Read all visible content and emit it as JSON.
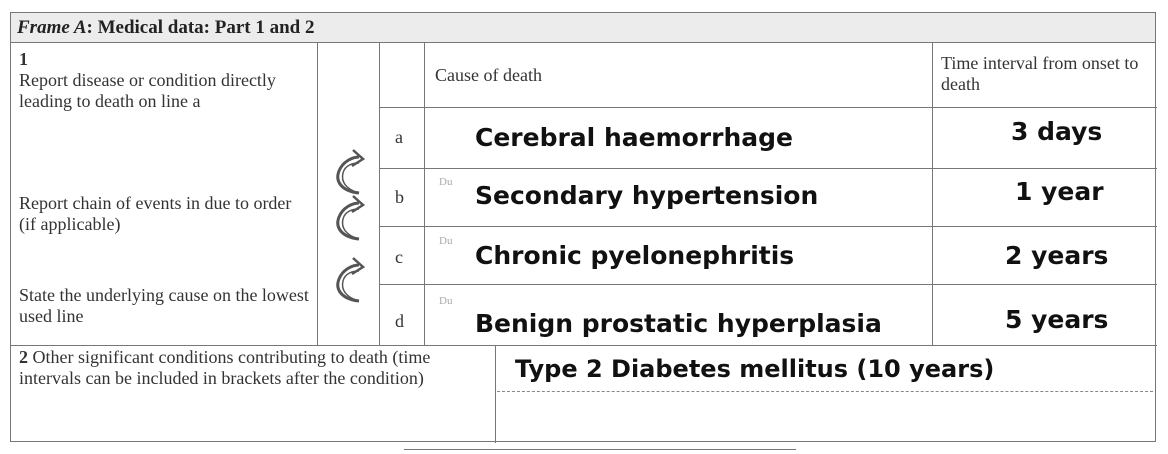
{
  "frame": {
    "title_italic": "Frame A",
    "title_rest": ": Medical data: Part 1 and 2"
  },
  "part1": {
    "number": "1",
    "instruction1": "Report disease or condition directly leading to death on line a",
    "instruction2": "Report chain of events in due to order (if applicable)",
    "instruction3": "State the underlying cause on the lowest used line",
    "header_cause": "Cause of death",
    "header_time": "Time interval from onset to death",
    "ghost_prefix": "Du",
    "rows": [
      {
        "letter": "a",
        "cause": "Cerebral haemorrhage",
        "time": "3 days"
      },
      {
        "letter": "b",
        "cause": "Secondary hypertension",
        "time": "1 year"
      },
      {
        "letter": "c",
        "cause": "Chronic pyelonephritis",
        "time": "2 years"
      },
      {
        "letter": "d",
        "cause": "Benign prostatic hyperplasia",
        "time": "5 years"
      }
    ]
  },
  "part2": {
    "number": "2",
    "label": "Other significant conditions contributing to death (time intervals can be included in brackets after the condition)",
    "value": "Type 2 Diabetes mellitus  (10 years)"
  },
  "icons": [
    "curved-arrow-icon",
    "curved-arrow-icon",
    "curved-arrow-icon"
  ]
}
